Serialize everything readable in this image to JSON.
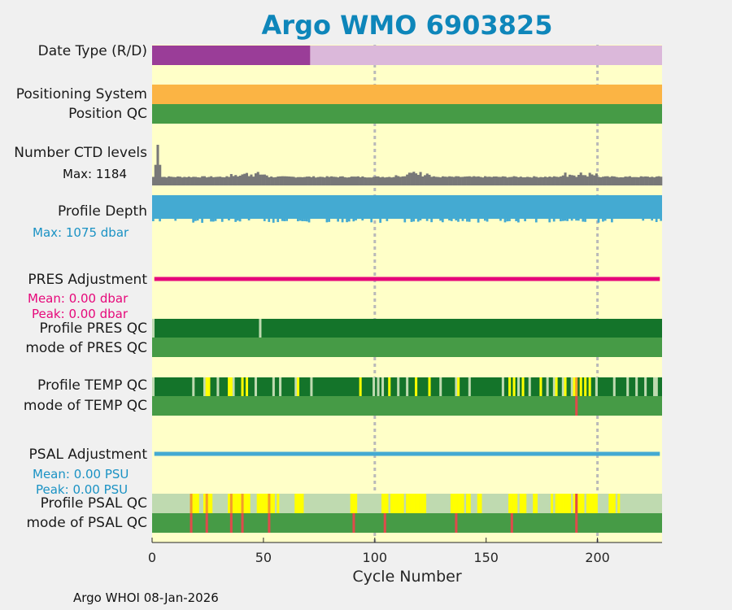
{
  "title": "Argo WMO 6903825",
  "footer": "Argo WHOI 08-Jan-2026",
  "labels": {
    "date_type": "Date Type (R/D)",
    "positioning": "Positioning System",
    "position_qc": "Position QC",
    "ctd_levels": "Number CTD levels",
    "ctd_max": "Max: 1184",
    "profile_depth": "Profile Depth",
    "depth_max": "Max: 1075 dbar",
    "pres_adj": "PRES Adjustment",
    "pres_mean": "Mean: 0.00 dbar",
    "pres_peak": "Peak: 0.00 dbar",
    "pres_qc": "Profile PRES QC",
    "pres_mode": "mode of PRES QC",
    "temp_qc": "Profile TEMP QC",
    "temp_mode": "mode of TEMP QC",
    "psal_adj": "PSAL Adjustment",
    "psal_mean": "Mean: 0.00 PSU",
    "psal_peak": "Peak: 0.00 PSU",
    "psal_qc": "Profile PSAL QC",
    "psal_mode": "mode of PSAL QC"
  },
  "colors": {
    "title": "#0e86ba",
    "background": "#ffffc8",
    "realtime": "#9a3d98",
    "delayed": "#dbb8da",
    "positioning": "#fbb444",
    "qc_good": "#469b46",
    "qc_dark": "#14742a",
    "qc_light": "#bfdab0",
    "qc_yellow": "#ffff00",
    "qc_orange": "#f39c2a",
    "qc_red": "#df4b4b",
    "ctd": "#787878",
    "depth": "#44aad2",
    "pres_adj": "#e6087a",
    "psal_adj": "#44aad2",
    "pres_text": "#e6087a",
    "psal_text": "#1a92c4",
    "depth_text": "#1a92c4"
  },
  "chart_data": {
    "type": "table",
    "title": "Argo WMO 6903825",
    "xlabel": "Cycle Number",
    "xlim": [
      0,
      229
    ],
    "xticks": [
      0,
      50,
      100,
      150,
      200
    ],
    "gridlines_x": [
      100,
      200
    ],
    "n_cycles": 229,
    "date_type": {
      "realtime_cycles": [
        1,
        71
      ],
      "delayed_cycles": [
        72,
        229
      ]
    },
    "ctd_levels": {
      "max": 1184,
      "typical_level": 45,
      "peak_cycle": 3
    },
    "profile_depth": {
      "max_dbar": 1075
    },
    "pres_adjustment": {
      "mean_dbar": 0.0,
      "peak_dbar": 0.0
    },
    "psal_adjustment": {
      "mean_psu": 0.0,
      "peak_psu": 0.0
    },
    "pres_qc_light_cycles": [
      49
    ],
    "temp_qc": {
      "light_cycles": [
        1,
        19,
        24,
        30,
        37,
        47,
        55,
        58,
        65,
        72,
        100,
        102,
        104,
        111,
        115,
        130,
        137,
        143,
        158,
        165,
        170,
        178,
        181,
        185,
        189,
        200,
        208,
        214,
        218,
        222,
        226,
        227
      ],
      "yellow_cycles": [
        25,
        26,
        35,
        36,
        41,
        43,
        66,
        94,
        107,
        119,
        125,
        138,
        161,
        163,
        167,
        175,
        182,
        186,
        190,
        193,
        195,
        197
      ],
      "orange_cycles": [
        191
      ],
      "mode_red_cycles": [
        191
      ]
    },
    "psal_qc": {
      "yellow_cycles": [
        19,
        20,
        21,
        24,
        26,
        27,
        35,
        37,
        38,
        39,
        40,
        42,
        43,
        44,
        48,
        49,
        50,
        51,
        52,
        53,
        54,
        55,
        57,
        65,
        66,
        67,
        68,
        90,
        91,
        92,
        104,
        105,
        106,
        108,
        109,
        110,
        111,
        112,
        113,
        115,
        116,
        117,
        118,
        119,
        120,
        121,
        122,
        123,
        135,
        136,
        137,
        138,
        139,
        140,
        142,
        143,
        147,
        148,
        161,
        162,
        163,
        164,
        166,
        167,
        168,
        172,
        173,
        180,
        182,
        183,
        184,
        185,
        186,
        187,
        188,
        190,
        192,
        193,
        194,
        196,
        197,
        198,
        199,
        200,
        206,
        207,
        208,
        210
      ],
      "orange_cycles": [
        18,
        25,
        36,
        41,
        53
      ],
      "red_cycles": [
        191
      ],
      "mode_red_cycles": [
        18,
        25,
        36,
        41,
        53,
        91,
        105,
        137,
        162,
        191
      ]
    }
  }
}
